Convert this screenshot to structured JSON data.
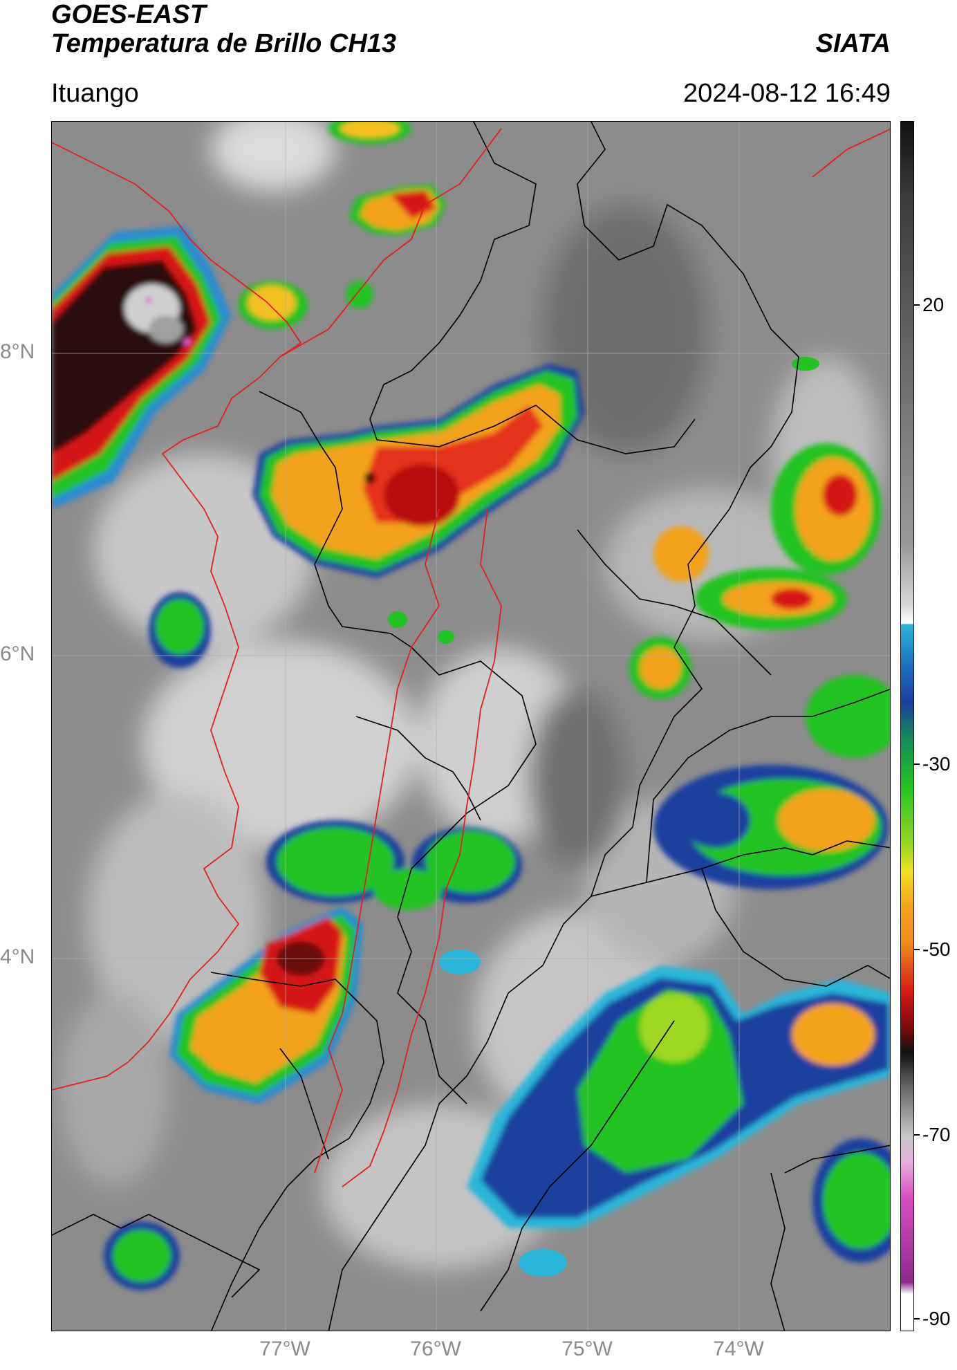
{
  "header": {
    "satellite": "GOES-EAST",
    "product": "Temperatura de Brillo CH13",
    "organization": "SIATA",
    "location": "Ituango",
    "timestamp": "2024-08-12 16:49"
  },
  "map": {
    "lat_labels": [
      "8°N",
      "6°N",
      "4°N"
    ],
    "lon_labels": [
      "77°W",
      "76°W",
      "75°W",
      "74°W"
    ],
    "colors": {
      "background_gray": "#8c8c8c",
      "border_lines": "#000000",
      "department_lines": "#e02020",
      "grid": "#b0b0b0"
    }
  },
  "colorbar": {
    "tick_labels": [
      "20",
      "-30",
      "-50",
      "-70",
      "-90"
    ],
    "units_hint": "°C",
    "colors": {
      "warm_top": "#3a3a3a",
      "white": "#ffffff",
      "cyan": "#29b6d9",
      "blue": "#1c3f9e",
      "green": "#23c323",
      "yellow": "#f3e021",
      "orange": "#f08a1c",
      "red": "#d51818",
      "black": "#111111",
      "magenta": "#d94dc0",
      "purple": "#8c2a8c"
    }
  }
}
